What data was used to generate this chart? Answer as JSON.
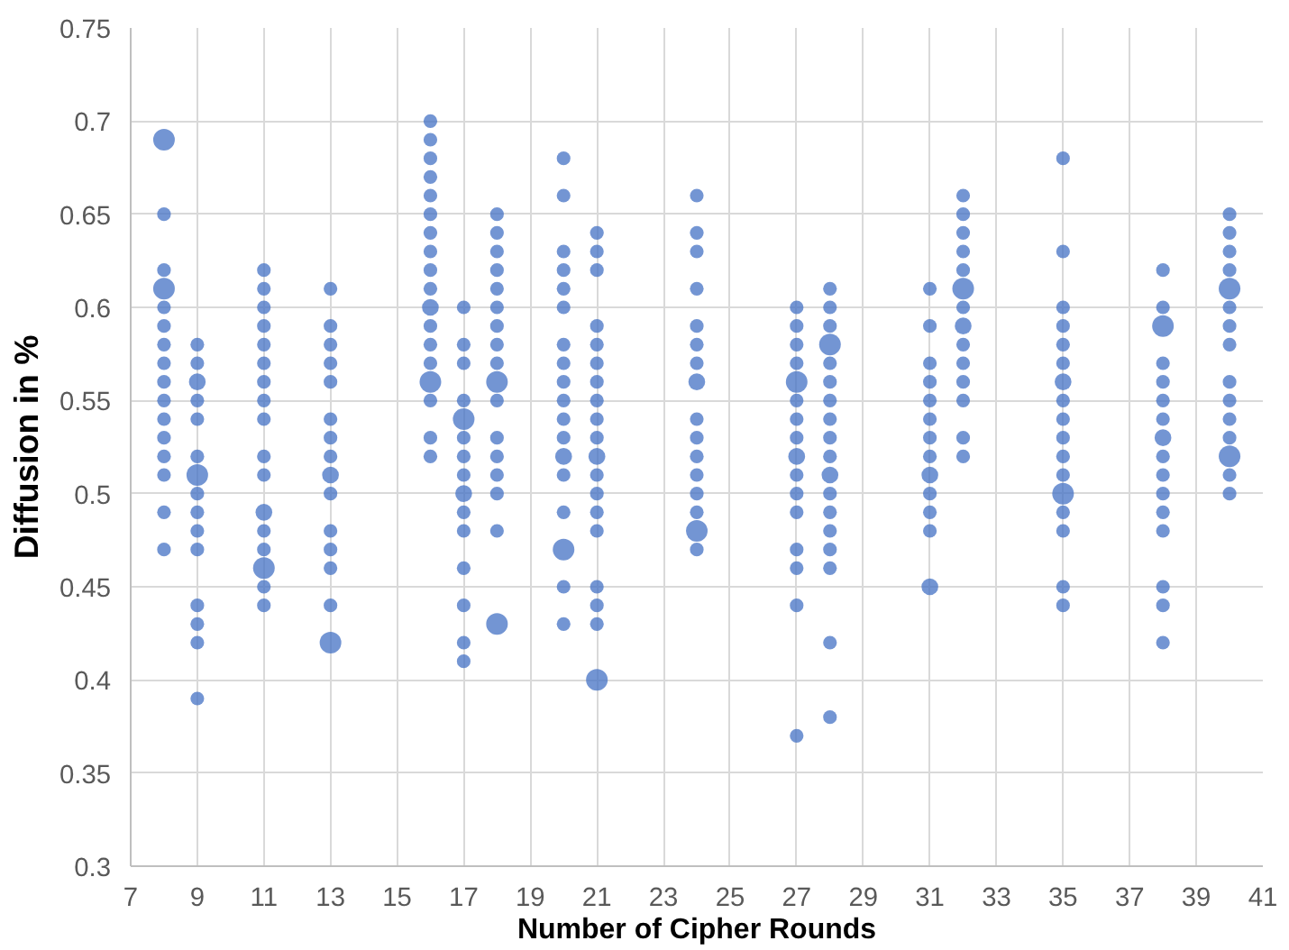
{
  "chart_data": {
    "type": "bubble",
    "xlabel": "Number of Cipher Rounds",
    "ylabel": "Diffusion in %",
    "color": "#4472c4",
    "grid": true,
    "xlim": [
      7,
      41
    ],
    "xticks": [
      7,
      9,
      11,
      13,
      15,
      17,
      19,
      21,
      23,
      25,
      27,
      29,
      31,
      33,
      35,
      37,
      39,
      41
    ],
    "ylim": [
      0.3,
      0.75
    ],
    "yticks": [
      0.3,
      0.35,
      0.4,
      0.45,
      0.5,
      0.55,
      0.6,
      0.65,
      0.7,
      0.75
    ],
    "x": [
      8,
      8,
      8,
      8,
      8,
      8,
      8,
      8,
      8,
      8,
      8,
      8,
      8,
      8,
      8,
      8,
      9,
      9,
      9,
      9,
      9,
      9,
      9,
      9,
      9,
      9,
      9,
      9,
      9,
      9,
      9,
      11,
      11,
      11,
      11,
      11,
      11,
      11,
      11,
      11,
      11,
      11,
      11,
      11,
      11,
      11,
      11,
      11,
      13,
      13,
      13,
      13,
      13,
      13,
      13,
      13,
      13,
      13,
      13,
      13,
      13,
      13,
      13,
      16,
      16,
      16,
      16,
      16,
      16,
      16,
      16,
      16,
      16,
      16,
      16,
      16,
      16,
      16,
      16,
      16,
      16,
      17,
      17,
      17,
      17,
      17,
      17,
      17,
      17,
      17,
      17,
      17,
      17,
      17,
      17,
      17,
      18,
      18,
      18,
      18,
      18,
      18,
      18,
      18,
      18,
      18,
      18,
      18,
      18,
      18,
      18,
      18,
      18,
      20,
      20,
      20,
      20,
      20,
      20,
      20,
      20,
      20,
      20,
      20,
      20,
      20,
      20,
      20,
      20,
      20,
      20,
      21,
      21,
      21,
      21,
      21,
      21,
      21,
      21,
      21,
      21,
      21,
      21,
      21,
      21,
      21,
      21,
      21,
      21,
      21,
      24,
      24,
      24,
      24,
      24,
      24,
      24,
      24,
      24,
      24,
      24,
      24,
      24,
      24,
      24,
      24,
      27,
      27,
      27,
      27,
      27,
      27,
      27,
      27,
      27,
      27,
      27,
      27,
      27,
      27,
      27,
      27,
      28,
      28,
      28,
      28,
      28,
      28,
      28,
      28,
      28,
      28,
      28,
      28,
      28,
      28,
      28,
      28,
      28,
      28,
      31,
      31,
      31,
      31,
      31,
      31,
      31,
      31,
      31,
      31,
      31,
      31,
      31,
      32,
      32,
      32,
      32,
      32,
      32,
      32,
      32,
      32,
      32,
      32,
      32,
      32,
      32,
      35,
      35,
      35,
      35,
      35,
      35,
      35,
      35,
      35,
      35,
      35,
      35,
      35,
      35,
      35,
      35,
      35,
      38,
      38,
      38,
      38,
      38,
      38,
      38,
      38,
      38,
      38,
      38,
      38,
      38,
      38,
      38,
      38,
      40,
      40,
      40,
      40,
      40,
      40,
      40,
      40,
      40,
      40,
      40,
      40,
      40,
      40,
      40
    ],
    "values": [
      0.69,
      0.65,
      0.62,
      0.61,
      0.6,
      0.59,
      0.58,
      0.57,
      0.56,
      0.55,
      0.54,
      0.53,
      0.52,
      0.51,
      0.49,
      0.47,
      0.58,
      0.57,
      0.56,
      0.55,
      0.54,
      0.52,
      0.51,
      0.5,
      0.49,
      0.48,
      0.47,
      0.44,
      0.43,
      0.42,
      0.39,
      0.62,
      0.61,
      0.6,
      0.59,
      0.58,
      0.57,
      0.56,
      0.55,
      0.54,
      0.52,
      0.51,
      0.49,
      0.48,
      0.47,
      0.46,
      0.45,
      0.44,
      0.61,
      0.59,
      0.58,
      0.57,
      0.56,
      0.54,
      0.53,
      0.52,
      0.51,
      0.5,
      0.48,
      0.47,
      0.46,
      0.44,
      0.42,
      0.7,
      0.69,
      0.68,
      0.67,
      0.66,
      0.65,
      0.64,
      0.63,
      0.62,
      0.61,
      0.6,
      0.59,
      0.58,
      0.57,
      0.56,
      0.55,
      0.53,
      0.52,
      0.6,
      0.58,
      0.57,
      0.55,
      0.54,
      0.53,
      0.52,
      0.51,
      0.5,
      0.49,
      0.48,
      0.46,
      0.44,
      0.42,
      0.41,
      0.65,
      0.64,
      0.63,
      0.62,
      0.61,
      0.6,
      0.59,
      0.58,
      0.57,
      0.56,
      0.55,
      0.53,
      0.52,
      0.51,
      0.5,
      0.48,
      0.43,
      0.68,
      0.66,
      0.63,
      0.62,
      0.61,
      0.6,
      0.58,
      0.57,
      0.56,
      0.55,
      0.54,
      0.53,
      0.52,
      0.51,
      0.49,
      0.47,
      0.45,
      0.43,
      0.64,
      0.63,
      0.62,
      0.59,
      0.58,
      0.57,
      0.56,
      0.55,
      0.54,
      0.53,
      0.52,
      0.51,
      0.5,
      0.49,
      0.48,
      0.45,
      0.44,
      0.43,
      0.4,
      0.66,
      0.64,
      0.63,
      0.61,
      0.59,
      0.58,
      0.57,
      0.56,
      0.54,
      0.53,
      0.52,
      0.51,
      0.5,
      0.49,
      0.48,
      0.47,
      0.6,
      0.59,
      0.58,
      0.57,
      0.56,
      0.55,
      0.54,
      0.53,
      0.52,
      0.51,
      0.5,
      0.49,
      0.47,
      0.46,
      0.44,
      0.37,
      0.61,
      0.6,
      0.59,
      0.58,
      0.57,
      0.56,
      0.55,
      0.54,
      0.53,
      0.52,
      0.51,
      0.5,
      0.49,
      0.48,
      0.47,
      0.46,
      0.42,
      0.38,
      0.61,
      0.59,
      0.57,
      0.56,
      0.55,
      0.54,
      0.53,
      0.52,
      0.51,
      0.5,
      0.49,
      0.48,
      0.45,
      0.66,
      0.65,
      0.64,
      0.63,
      0.62,
      0.61,
      0.6,
      0.59,
      0.58,
      0.57,
      0.56,
      0.55,
      0.53,
      0.52,
      0.68,
      0.63,
      0.6,
      0.59,
      0.58,
      0.57,
      0.56,
      0.55,
      0.54,
      0.53,
      0.52,
      0.51,
      0.5,
      0.49,
      0.48,
      0.45,
      0.44,
      0.62,
      0.6,
      0.59,
      0.57,
      0.56,
      0.55,
      0.54,
      0.53,
      0.52,
      0.51,
      0.5,
      0.49,
      0.48,
      0.45,
      0.44,
      0.42,
      0.65,
      0.64,
      0.63,
      0.62,
      0.61,
      0.6,
      0.59,
      0.58,
      0.56,
      0.55,
      0.54,
      0.53,
      0.52,
      0.51,
      0.5
    ],
    "sizes": [
      1,
      0.4,
      0.4,
      1,
      0.4,
      0.4,
      0.4,
      0.4,
      0.4,
      0.4,
      0.4,
      0.4,
      0.4,
      0.4,
      0.4,
      0.4,
      0.4,
      0.4,
      0.6,
      0.4,
      0.4,
      0.4,
      1,
      0.4,
      0.4,
      0.4,
      0.4,
      0.4,
      0.4,
      0.4,
      0.4,
      0.4,
      0.4,
      0.4,
      0.4,
      0.4,
      0.4,
      0.4,
      0.4,
      0.4,
      0.4,
      0.4,
      0.6,
      0.4,
      0.4,
      1,
      0.4,
      0.4,
      0.4,
      0.4,
      0.4,
      0.4,
      0.4,
      0.4,
      0.4,
      0.4,
      0.6,
      0.4,
      0.4,
      0.4,
      0.4,
      0.4,
      1,
      0.4,
      0.4,
      0.4,
      0.4,
      0.4,
      0.4,
      0.4,
      0.4,
      0.4,
      0.4,
      0.6,
      0.4,
      0.4,
      0.4,
      1,
      0.4,
      0.4,
      0.4,
      0.4,
      0.4,
      0.4,
      0.4,
      1,
      0.4,
      0.4,
      0.4,
      0.6,
      0.4,
      0.4,
      0.4,
      0.4,
      0.4,
      0.4,
      0.4,
      0.4,
      0.4,
      0.4,
      0.4,
      0.4,
      0.4,
      0.4,
      0.4,
      1,
      0.4,
      0.4,
      0.4,
      0.4,
      0.4,
      0.4,
      1,
      0.4,
      0.4,
      0.4,
      0.4,
      0.4,
      0.4,
      0.4,
      0.4,
      0.4,
      0.4,
      0.4,
      0.4,
      0.6,
      0.4,
      0.4,
      1,
      0.4,
      0.4,
      0.4,
      0.4,
      0.4,
      0.4,
      0.4,
      0.4,
      0.4,
      0.4,
      0.4,
      0.4,
      0.6,
      0.4,
      0.4,
      0.4,
      0.4,
      0.4,
      0.4,
      0.4,
      1,
      0.4,
      0.4,
      0.4,
      0.4,
      0.4,
      0.4,
      0.4,
      0.6,
      0.4,
      0.4,
      0.4,
      0.4,
      0.4,
      0.4,
      1,
      0.4,
      0.4,
      0.4,
      0.4,
      0.4,
      1,
      0.4,
      0.4,
      0.4,
      0.6,
      0.4,
      0.4,
      0.4,
      0.4,
      0.4,
      0.4,
      0.4,
      0.4,
      0.4,
      0.4,
      1,
      0.4,
      0.4,
      0.4,
      0.4,
      0.4,
      0.4,
      0.6,
      0.4,
      0.4,
      0.4,
      0.4,
      0.4,
      0.4,
      0.4,
      0.4,
      0.4,
      0.4,
      0.4,
      0.4,
      0.4,
      0.4,
      0.4,
      0.6,
      0.4,
      0.4,
      0.4,
      0.6,
      0.4,
      0.4,
      0.4,
      0.4,
      0.4,
      1,
      0.4,
      0.6,
      0.4,
      0.4,
      0.4,
      0.4,
      0.4,
      0.4,
      0.4,
      0.4,
      0.4,
      0.4,
      0.4,
      0.4,
      0.6,
      0.4,
      0.4,
      0.4,
      0.4,
      0.4,
      1,
      0.4,
      0.4,
      0.4,
      0.4,
      0.4,
      0.4,
      1,
      0.4,
      0.4,
      0.4,
      0.4,
      0.6,
      0.4,
      0.4,
      0.4,
      0.4,
      0.4,
      0.4,
      0.4,
      0.4,
      0.4,
      0.4,
      0.4,
      0.4,
      1,
      0.4,
      0.4,
      0.4,
      0.4,
      0.4,
      0.4,
      0.4,
      1,
      0.4,
      0.4
    ]
  }
}
